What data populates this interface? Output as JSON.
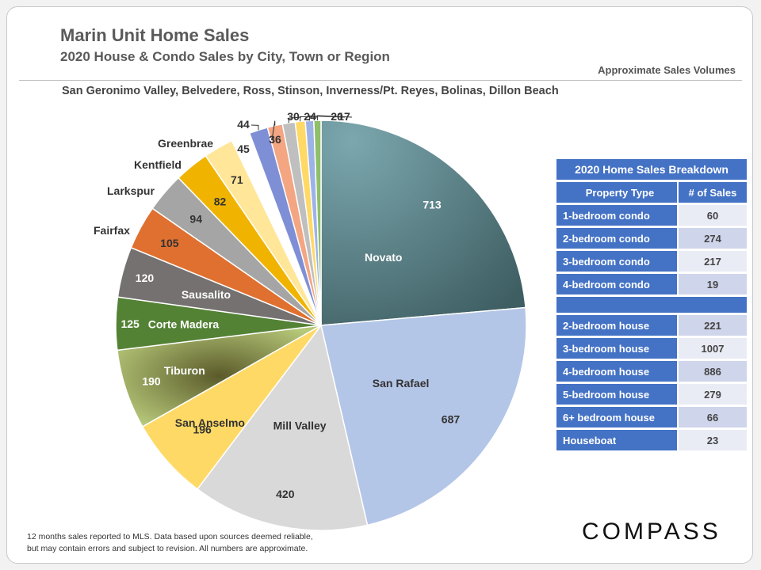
{
  "header": {
    "title": "Marin Unit Home Sales",
    "subtitle": "2020 House  & Condo  Sales by City, Town or Region",
    "note": "Approximate Sales Volumes",
    "regions_line": "San Geronimo Valley, Belvedere, Ross, Stinson, Inverness/Pt. Reyes, Bolinas, Dillon Beach"
  },
  "chart_data": {
    "type": "pie",
    "title": "2020 House & Condo Sales by City, Town or Region",
    "slices": [
      {
        "name": "Novato",
        "value": 713,
        "color": "#5f8f97"
      },
      {
        "name": "San Rafael",
        "value": 687,
        "color": "#b4c6e7"
      },
      {
        "name": "Mill Valley",
        "value": 420,
        "color": "#d9d9d9"
      },
      {
        "name": "San Anselmo",
        "value": 196,
        "color": "#ffd966"
      },
      {
        "name": "Tiburon",
        "value": 190,
        "color": "#a9c26a"
      },
      {
        "name": "Corte Madera",
        "value": 125,
        "color": "#548235"
      },
      {
        "name": "Sausalito",
        "value": 120,
        "color": "#767171"
      },
      {
        "name": "Fairfax",
        "value": 105,
        "color": "#e07030"
      },
      {
        "name": "Larkspur",
        "value": 94,
        "color": "#a5a5a5"
      },
      {
        "name": "Kentfield",
        "value": 82,
        "color": "#f0b400"
      },
      {
        "name": "Greenbrae",
        "value": 71,
        "color": "#ffe699"
      },
      {
        "name": "",
        "value": 45,
        "color": "#ffffff"
      },
      {
        "name": "",
        "value": 44,
        "color": "#7f8fd6"
      },
      {
        "name": "",
        "value": 36,
        "color": "#f4a582"
      },
      {
        "name": "",
        "value": 30,
        "color": "#bfbfbf"
      },
      {
        "name": "",
        "value": 24,
        "color": "#ffd966"
      },
      {
        "name": "",
        "value": 20,
        "color": "#9db3e8"
      },
      {
        "name": "",
        "value": 17,
        "color": "#8fbf6a"
      }
    ]
  },
  "breakdown": {
    "title": "2020 Home Sales Breakdown",
    "col_type": "Property Type",
    "col_sales": "# of Sales",
    "condos": [
      {
        "type": "1-bedroom condo",
        "sales": "60"
      },
      {
        "type": "2-bedroom condo",
        "sales": "274"
      },
      {
        "type": "3-bedroom condo",
        "sales": "217"
      },
      {
        "type": "4-bedroom condo",
        "sales": "19"
      }
    ],
    "houses": [
      {
        "type": "2-bedroom house",
        "sales": "221"
      },
      {
        "type": "3-bedroom house",
        "sales": "1007"
      },
      {
        "type": "4-bedroom house",
        "sales": "886"
      },
      {
        "type": "5-bedroom house",
        "sales": "279"
      },
      {
        "type": "6+ bedroom house",
        "sales": "66"
      },
      {
        "type": "Houseboat",
        "sales": "23"
      }
    ]
  },
  "footer": {
    "note_line1": "12 months sales reported to MLS. Data based upon sources deemed reliable,",
    "note_line2": "but may contain errors and subject to revision. All numbers are approximate.",
    "logo": "COMPASS"
  }
}
